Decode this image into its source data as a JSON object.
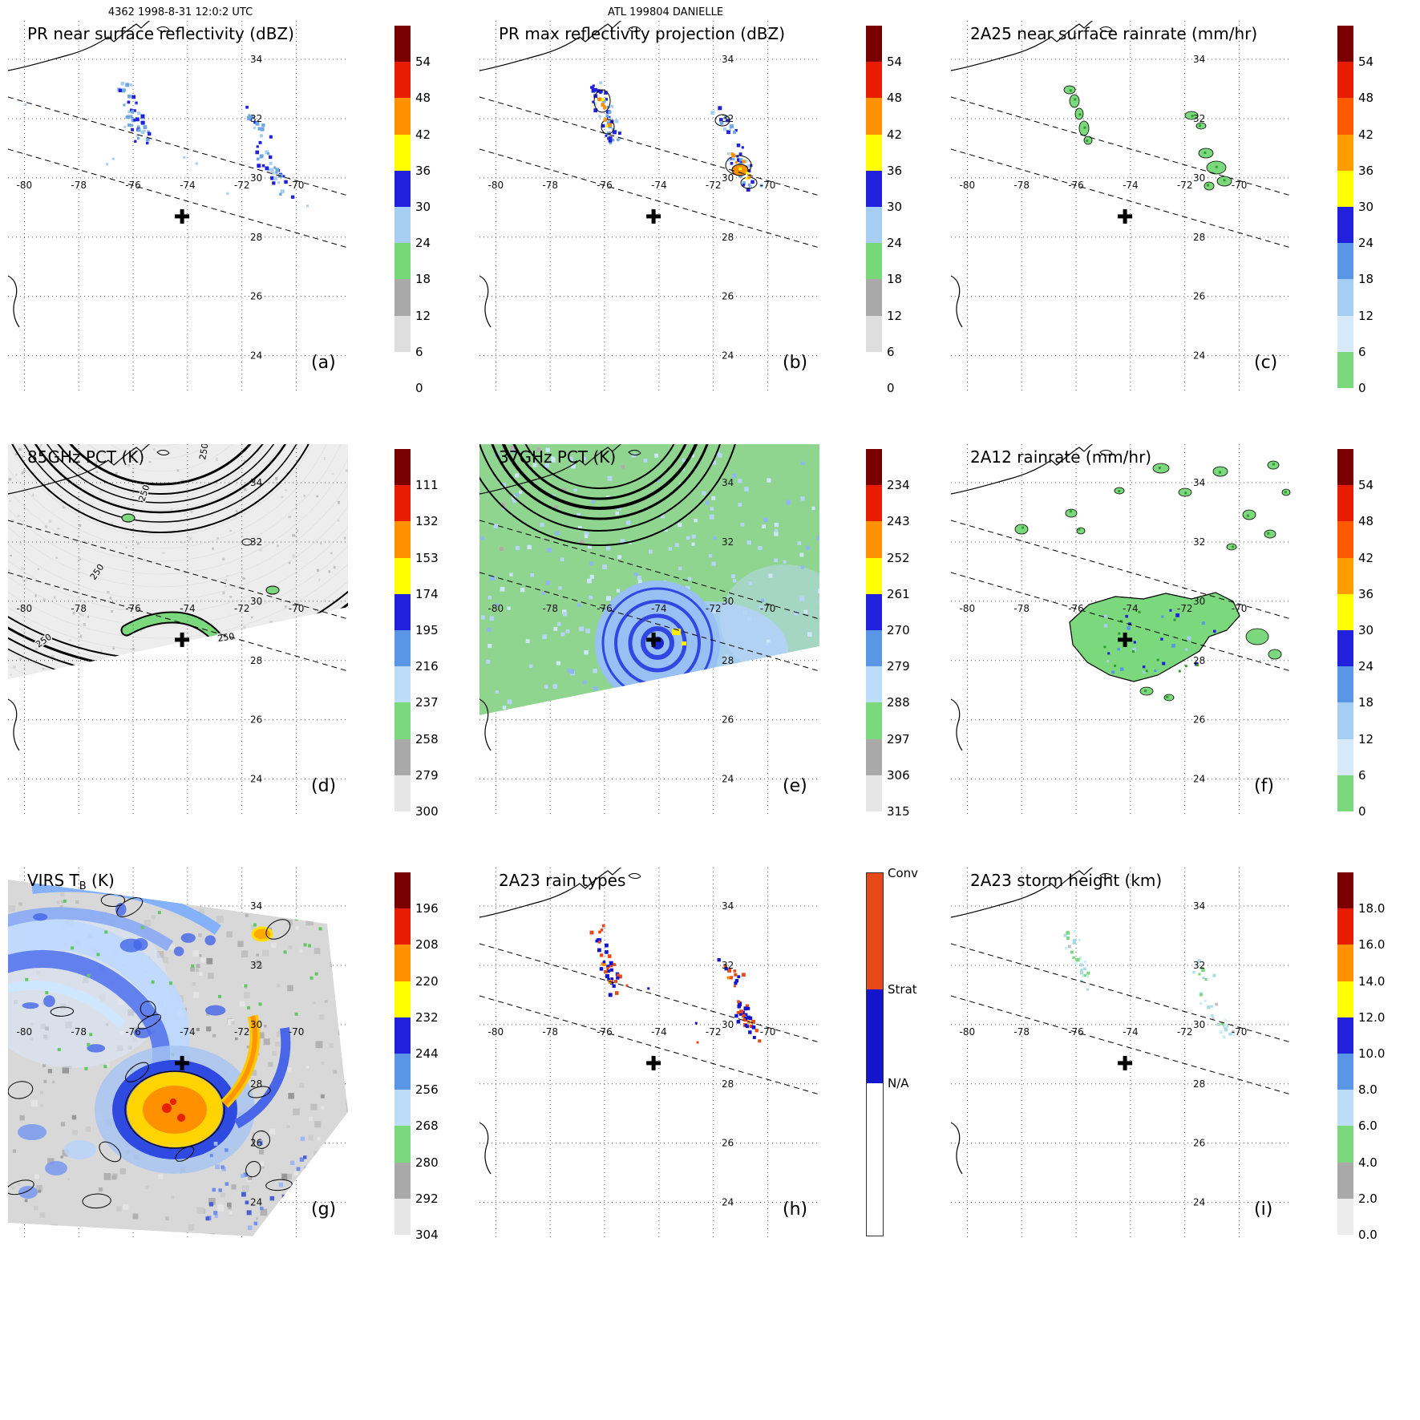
{
  "header": {
    "orbit_line": "4362 1998-8-31 12:0:2 UTC",
    "storm_line": "ATL 199804 DANIELLE"
  },
  "axes": {
    "lon_labels": [
      "-80",
      "-78",
      "-76",
      "-74",
      "-72",
      "-70"
    ],
    "lon_values": [
      -80,
      -78,
      -76,
      -74,
      -72,
      -70
    ],
    "lat_labels": [
      "34",
      "32",
      "30",
      "28",
      "26",
      "24"
    ],
    "lat_values": [
      34,
      32,
      30,
      28,
      26,
      24
    ]
  },
  "chart_data": {
    "type": "heatmap",
    "storm_id": "ATL 199804 DANIELLE",
    "orbit": "4362",
    "datetime_utc": "1998-8-31 12:0:2 UTC",
    "lon_range": [
      -80.6,
      -68.1
    ],
    "lat_range": [
      22.8,
      35.3
    ],
    "grid_step_deg": 2,
    "grid_on": true,
    "storm_center_lon": -74.2,
    "storm_center_lat": 28.7,
    "palettes": {
      "reflectivity": [
        "#780000",
        "#e81c00",
        "#ff9000",
        "#ffff00",
        "#2020dd",
        "#a6cdf2",
        "#77d877",
        "#a9a9a9",
        "#dedede",
        "#ffffff"
      ],
      "rainrate": [
        "#780000",
        "#e81c00",
        "#ff5a00",
        "#ff9c00",
        "#ffff00",
        "#2020dd",
        "#5a96e6",
        "#a6cdf2",
        "#d6eafc",
        "#7cd87c"
      ],
      "pct": [
        "#780000",
        "#e81c00",
        "#ff9000",
        "#ffff00",
        "#2020dd",
        "#5a96e6",
        "#bcdcf8",
        "#7cd87c",
        "#a9a9a9",
        "#e6e6e6"
      ],
      "height": [
        "#780000",
        "#e81c00",
        "#ff9000",
        "#ffff00",
        "#2020dd",
        "#5a96e6",
        "#bcdcf8",
        "#7cd87c",
        "#a9a9a9",
        "#ececec"
      ]
    },
    "extra_colors": {
      "mid_blue": "#6fa8e0",
      "dark_green": "#2f9e2f",
      "conv": "#e8491a",
      "strat": "#1414cc",
      "swath_fill_85": "#ededed",
      "swath_fill_37": "#8fd48f",
      "eye_ring_blue": "#2b3fe0",
      "eye_fill": "#98c0f4",
      "pale_wash": "#aaccf6",
      "yellow_spot": "#ffee00",
      "pale_cyan": "#a8dce8",
      "pale_cyan2": "#cdeef6",
      "virs_base": "#d8d8d8",
      "virs_core_yellow": "#ffd400",
      "virs_core_orange": "#ff9000",
      "virs_core_red": "#e62000",
      "virs_ring_blue": "#2f4ae0",
      "ribbon_blue": "#5577ee",
      "ribbon_pale": "#bcd8ff"
    },
    "panels": [
      {
        "id": "a",
        "letter": "(a)",
        "title": "PR near surface reflectivity (dBZ)",
        "unit": "dBZ",
        "palette": "reflectivity",
        "map_style": "pr_reflectivity",
        "colorbar_ticks": [
          "54",
          "48",
          "42",
          "36",
          "30",
          "24",
          "18",
          "12",
          "6",
          "0"
        ]
      },
      {
        "id": "b",
        "letter": "(b)",
        "title": "PR max reflectivity projection (dBZ)",
        "unit": "dBZ",
        "palette": "reflectivity",
        "map_style": "pr_max_reflectivity",
        "colorbar_ticks": [
          "54",
          "48",
          "42",
          "36",
          "30",
          "24",
          "18",
          "12",
          "6",
          "0"
        ]
      },
      {
        "id": "c",
        "letter": "(c)",
        "title": "2A25 near surface rainrate (mm/hr)",
        "unit": "mm/hr",
        "palette": "rainrate",
        "map_style": "rainrate_cells",
        "colorbar_ticks": [
          "54",
          "48",
          "42",
          "36",
          "30",
          "24",
          "18",
          "12",
          "6",
          "0"
        ]
      },
      {
        "id": "d",
        "letter": "(d)",
        "title": "85GHz PCT (K)",
        "unit": "K",
        "palette": "pct",
        "map_style": "pct85",
        "contour_label": "250",
        "colorbar_ticks": [
          "111",
          "132",
          "153",
          "174",
          "195",
          "216",
          "237",
          "258",
          "279",
          "300"
        ]
      },
      {
        "id": "e",
        "letter": "(e)",
        "title": "37GHz PCT (K)",
        "unit": "K",
        "palette": "pct",
        "map_style": "pct37",
        "colorbar_ticks": [
          "234",
          "243",
          "252",
          "261",
          "270",
          "279",
          "288",
          "297",
          "306",
          "315"
        ]
      },
      {
        "id": "f",
        "letter": "(f)",
        "title": "2A12 rainrate (mm/hr)",
        "unit": "mm/hr",
        "palette": "rainrate",
        "map_style": "rain2a12",
        "colorbar_ticks": [
          "54",
          "48",
          "42",
          "36",
          "30",
          "24",
          "18",
          "12",
          "6",
          "0"
        ]
      },
      {
        "id": "g",
        "letter": "(g)",
        "title": "VIRS TB (K)",
        "title_prefix": "VIRS T",
        "title_sub": "B",
        "title_suffix": " (K)",
        "unit": "K",
        "palette": "pct",
        "map_style": "virs",
        "colorbar_ticks": [
          "196",
          "208",
          "220",
          "232",
          "244",
          "256",
          "268",
          "280",
          "292",
          "304"
        ]
      },
      {
        "id": "h",
        "letter": "(h)",
        "title": "2A23 rain types",
        "unit": "",
        "map_style": "raintypes",
        "categories": [
          {
            "label": "Conv",
            "color": "#e8491a"
          },
          {
            "label": "Strat",
            "color": "#1414cc"
          },
          {
            "label": "N/A",
            "color": "#ffffff"
          }
        ]
      },
      {
        "id": "i",
        "letter": "(i)",
        "title": "2A23 storm height (km)",
        "unit": "km",
        "palette": "height",
        "map_style": "stormheight",
        "colorbar_ticks": [
          "18.0",
          "16.0",
          "14.0",
          "12.0",
          "10.0",
          "8.0",
          "6.0",
          "4.0",
          "2.0",
          "0.0"
        ]
      }
    ]
  }
}
